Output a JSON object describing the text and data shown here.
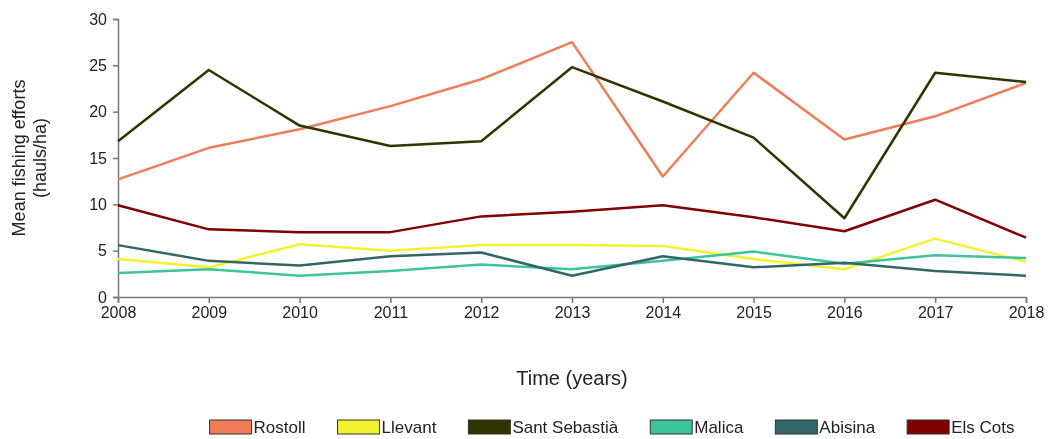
{
  "chart_data": {
    "type": "line",
    "xlabel": "Time (years)",
    "ylabel": "Mean fishing efforts (hauls/ha)",
    "x": [
      2008,
      2009,
      2010,
      2011,
      2012,
      2013,
      2014,
      2015,
      2016,
      2017,
      2018
    ],
    "xlim": [
      2008,
      2018
    ],
    "xticks": [
      2008,
      2009,
      2010,
      2011,
      2012,
      2013,
      2014,
      2015,
      2016,
      2017,
      2018
    ],
    "ylim": [
      0,
      30
    ],
    "yticks": [
      0,
      5,
      10,
      15,
      20,
      25,
      30
    ],
    "grid": false,
    "legend": "bottom",
    "marker": "none",
    "line_style": "solid",
    "series": [
      {
        "name": "Rostoll",
        "color": "#f07c5a",
        "values": [
          12.7,
          16.1,
          18.1,
          20.6,
          23.5,
          27.5,
          13.0,
          24.2,
          17.0,
          19.5,
          23.1
        ]
      },
      {
        "name": "Llevant",
        "color": "#f2f230",
        "values": [
          4.1,
          3.2,
          5.7,
          5.0,
          5.6,
          5.6,
          5.5,
          4.1,
          3.0,
          6.3,
          3.8
        ]
      },
      {
        "name": "Sant Sebastià",
        "color": "#333300",
        "values": [
          16.8,
          24.5,
          18.5,
          16.3,
          16.8,
          24.8,
          21.1,
          17.2,
          8.5,
          24.2,
          23.2
        ]
      },
      {
        "name": "Malica",
        "color": "#3cc49c",
        "values": [
          2.6,
          3.0,
          2.3,
          2.8,
          3.5,
          3.0,
          3.9,
          4.9,
          3.6,
          4.5,
          4.2
        ]
      },
      {
        "name": "Abisina",
        "color": "#336666",
        "values": [
          5.6,
          3.9,
          3.4,
          4.4,
          4.8,
          2.3,
          4.4,
          3.2,
          3.7,
          2.8,
          2.3
        ]
      },
      {
        "name": "Els Cots",
        "color": "#800000",
        "values": [
          9.9,
          7.3,
          7.0,
          7.0,
          8.7,
          9.2,
          9.9,
          8.6,
          7.1,
          10.5,
          6.4
        ]
      }
    ]
  }
}
